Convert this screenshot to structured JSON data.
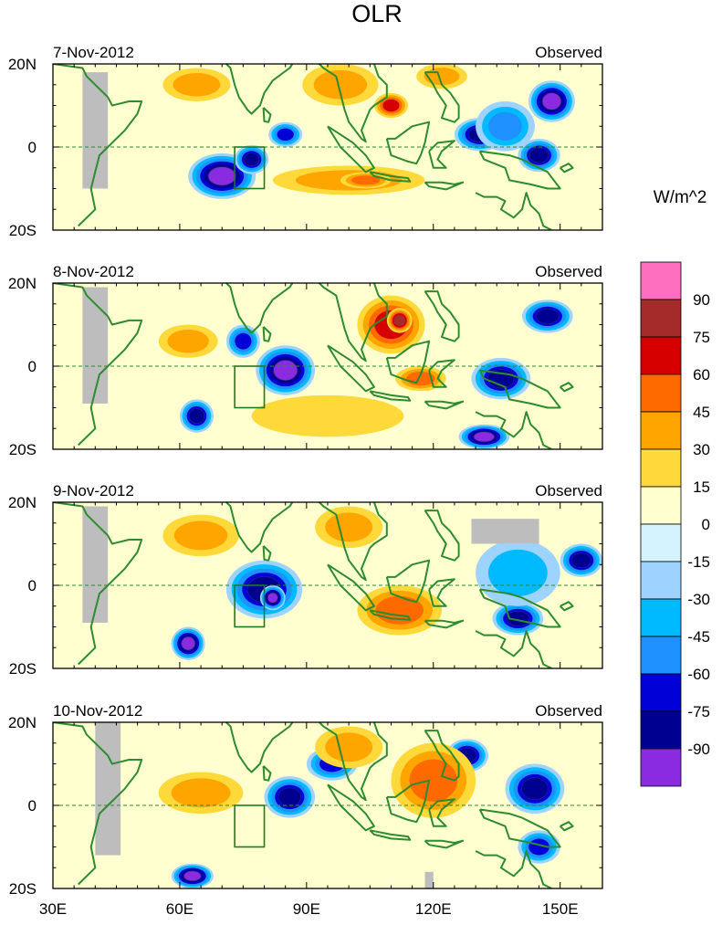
{
  "chart_data": {
    "type": "heatmap",
    "title": "OLR",
    "units": "W/m^2",
    "x_ticks": [
      "30E",
      "60E",
      "90E",
      "120E",
      "150E"
    ],
    "x_range_deg": [
      30,
      160
    ],
    "y_ticks": [
      "20N",
      "0",
      "20S"
    ],
    "y_range_deg": [
      -20,
      20
    ],
    "colorbar": {
      "levels": [
        "90",
        "75",
        "60",
        "45",
        "30",
        "15",
        "0",
        "-15",
        "-30",
        "-45",
        "-60",
        "-75",
        "-90"
      ],
      "colors": [
        "#ff6fbf",
        "#a52a2a",
        "#d70000",
        "#ff6a00",
        "#ffa500",
        "#ffd83a",
        "#ffffd0",
        "#d4f3ff",
        "#9fd3ff",
        "#00baff",
        "#1e90ff",
        "#0000d6",
        "#000090",
        "#8a2be2"
      ]
    },
    "panels": [
      {
        "date": "7-Nov-2012",
        "label": "Observed",
        "features": [
          {
            "kind": "blob",
            "lon": 70,
            "lat": -7,
            "rx": 8,
            "ry": 5.5,
            "value": -90
          },
          {
            "kind": "blob",
            "lon": 77,
            "lat": -3,
            "rx": 4,
            "ry": 3.5,
            "value": -75
          },
          {
            "kind": "blob",
            "lon": 85,
            "lat": 3,
            "rx": 4,
            "ry": 3,
            "value": -60
          },
          {
            "kind": "blob",
            "lon": 131,
            "lat": 3,
            "rx": 6,
            "ry": 4,
            "value": -75
          },
          {
            "kind": "blob",
            "lon": 148,
            "lat": 11,
            "rx": 5.5,
            "ry": 5,
            "value": -90
          },
          {
            "kind": "blob",
            "lon": 145,
            "lat": -2,
            "rx": 5,
            "ry": 4,
            "value": -75
          },
          {
            "kind": "blob",
            "lon": 137,
            "lat": 5,
            "rx": 7,
            "ry": 6,
            "value": -45
          },
          {
            "kind": "blob",
            "lon": 64,
            "lat": 15,
            "rx": 8,
            "ry": 4,
            "value": 30
          },
          {
            "kind": "blob",
            "lon": 98,
            "lat": 15,
            "rx": 9,
            "ry": 5,
            "value": 30
          },
          {
            "kind": "blob",
            "lon": 110,
            "lat": 10,
            "rx": 4,
            "ry": 3,
            "value": 60
          },
          {
            "kind": "blob",
            "lon": 122,
            "lat": 17,
            "rx": 6,
            "ry": 3,
            "value": 30
          },
          {
            "kind": "blob",
            "lon": 100,
            "lat": -8,
            "rx": 18,
            "ry": 3.5,
            "value": 30
          },
          {
            "kind": "blob",
            "lon": 104,
            "lat": -8,
            "rx": 6,
            "ry": 2,
            "value": 45
          },
          {
            "kind": "missing",
            "lon": 40,
            "lat": 4,
            "rx": 3,
            "ry": 14
          }
        ]
      },
      {
        "date": "8-Nov-2012",
        "label": "Observed",
        "features": [
          {
            "kind": "blob",
            "lon": 85,
            "lat": -1,
            "rx": 7,
            "ry": 6,
            "value": -90
          },
          {
            "kind": "blob",
            "lon": 75,
            "lat": 6,
            "rx": 4,
            "ry": 4,
            "value": -60
          },
          {
            "kind": "blob",
            "lon": 64,
            "lat": -12,
            "rx": 4,
            "ry": 4,
            "value": -75
          },
          {
            "kind": "blob",
            "lon": 136,
            "lat": -3,
            "rx": 7,
            "ry": 5,
            "value": -75
          },
          {
            "kind": "blob",
            "lon": 147,
            "lat": 12,
            "rx": 6,
            "ry": 4,
            "value": -75
          },
          {
            "kind": "blob",
            "lon": 132,
            "lat": -17,
            "rx": 6,
            "ry": 3,
            "value": -90
          },
          {
            "kind": "blob",
            "lon": 110,
            "lat": 10,
            "rx": 8,
            "ry": 7,
            "value": 60
          },
          {
            "kind": "blob",
            "lon": 112,
            "lat": 11,
            "rx": 3,
            "ry": 3,
            "value": 75
          },
          {
            "kind": "blob",
            "lon": 117,
            "lat": -3,
            "rx": 6,
            "ry": 3,
            "value": 45
          },
          {
            "kind": "blob",
            "lon": 95,
            "lat": -12,
            "rx": 18,
            "ry": 5,
            "value": 15
          },
          {
            "kind": "blob",
            "lon": 62,
            "lat": 6,
            "rx": 7,
            "ry": 4,
            "value": 30
          },
          {
            "kind": "missing",
            "lon": 40,
            "lat": 5,
            "rx": 3,
            "ry": 14
          }
        ]
      },
      {
        "date": "9-Nov-2012",
        "label": "Observed",
        "features": [
          {
            "kind": "blob",
            "lon": 80,
            "lat": -1,
            "rx": 9,
            "ry": 7,
            "value": -75
          },
          {
            "kind": "blob",
            "lon": 82,
            "lat": -3,
            "rx": 3,
            "ry": 3,
            "value": -90
          },
          {
            "kind": "blob",
            "lon": 62,
            "lat": -14,
            "rx": 4,
            "ry": 4,
            "value": -90
          },
          {
            "kind": "blob",
            "lon": 140,
            "lat": -8,
            "rx": 6,
            "ry": 4,
            "value": -75
          },
          {
            "kind": "blob",
            "lon": 155,
            "lat": 6,
            "rx": 5,
            "ry": 4,
            "value": -75
          },
          {
            "kind": "blob",
            "lon": 140,
            "lat": 3,
            "rx": 10,
            "ry": 8,
            "value": -30
          },
          {
            "kind": "blob",
            "lon": 65,
            "lat": 12,
            "rx": 9,
            "ry": 5,
            "value": 30
          },
          {
            "kind": "blob",
            "lon": 100,
            "lat": 14,
            "rx": 8,
            "ry": 5,
            "value": 30
          },
          {
            "kind": "blob",
            "lon": 112,
            "lat": -6,
            "rx": 10,
            "ry": 6,
            "value": 45
          },
          {
            "kind": "missing",
            "lon": 40,
            "lat": 5,
            "rx": 3,
            "ry": 14
          },
          {
            "kind": "missing",
            "lon": 137,
            "lat": 13,
            "rx": 8,
            "ry": 3
          }
        ]
      },
      {
        "date": "10-Nov-2012",
        "label": "Observed",
        "features": [
          {
            "kind": "blob",
            "lon": 86,
            "lat": 2,
            "rx": 6,
            "ry": 5,
            "value": -75
          },
          {
            "kind": "blob",
            "lon": 96,
            "lat": 10,
            "rx": 6,
            "ry": 4,
            "value": -60
          },
          {
            "kind": "blob",
            "lon": 63,
            "lat": -17,
            "rx": 5,
            "ry": 3,
            "value": -90
          },
          {
            "kind": "blob",
            "lon": 144,
            "lat": 4,
            "rx": 7,
            "ry": 6,
            "value": -75
          },
          {
            "kind": "blob",
            "lon": 145,
            "lat": -10,
            "rx": 5,
            "ry": 4,
            "value": -60
          },
          {
            "kind": "blob",
            "lon": 128,
            "lat": 12,
            "rx": 5,
            "ry": 4,
            "value": -75
          },
          {
            "kind": "blob",
            "lon": 120,
            "lat": 6,
            "rx": 10,
            "ry": 9,
            "value": 45
          },
          {
            "kind": "blob",
            "lon": 65,
            "lat": 3,
            "rx": 10,
            "ry": 5,
            "value": 30
          },
          {
            "kind": "blob",
            "lon": 100,
            "lat": 14,
            "rx": 8,
            "ry": 5,
            "value": 30
          },
          {
            "kind": "missing",
            "lon": 43,
            "lat": 4,
            "rx": 3,
            "ry": 16
          },
          {
            "kind": "missing",
            "lon": 119,
            "lat": -18,
            "rx": 1,
            "ry": 2
          }
        ]
      }
    ]
  }
}
